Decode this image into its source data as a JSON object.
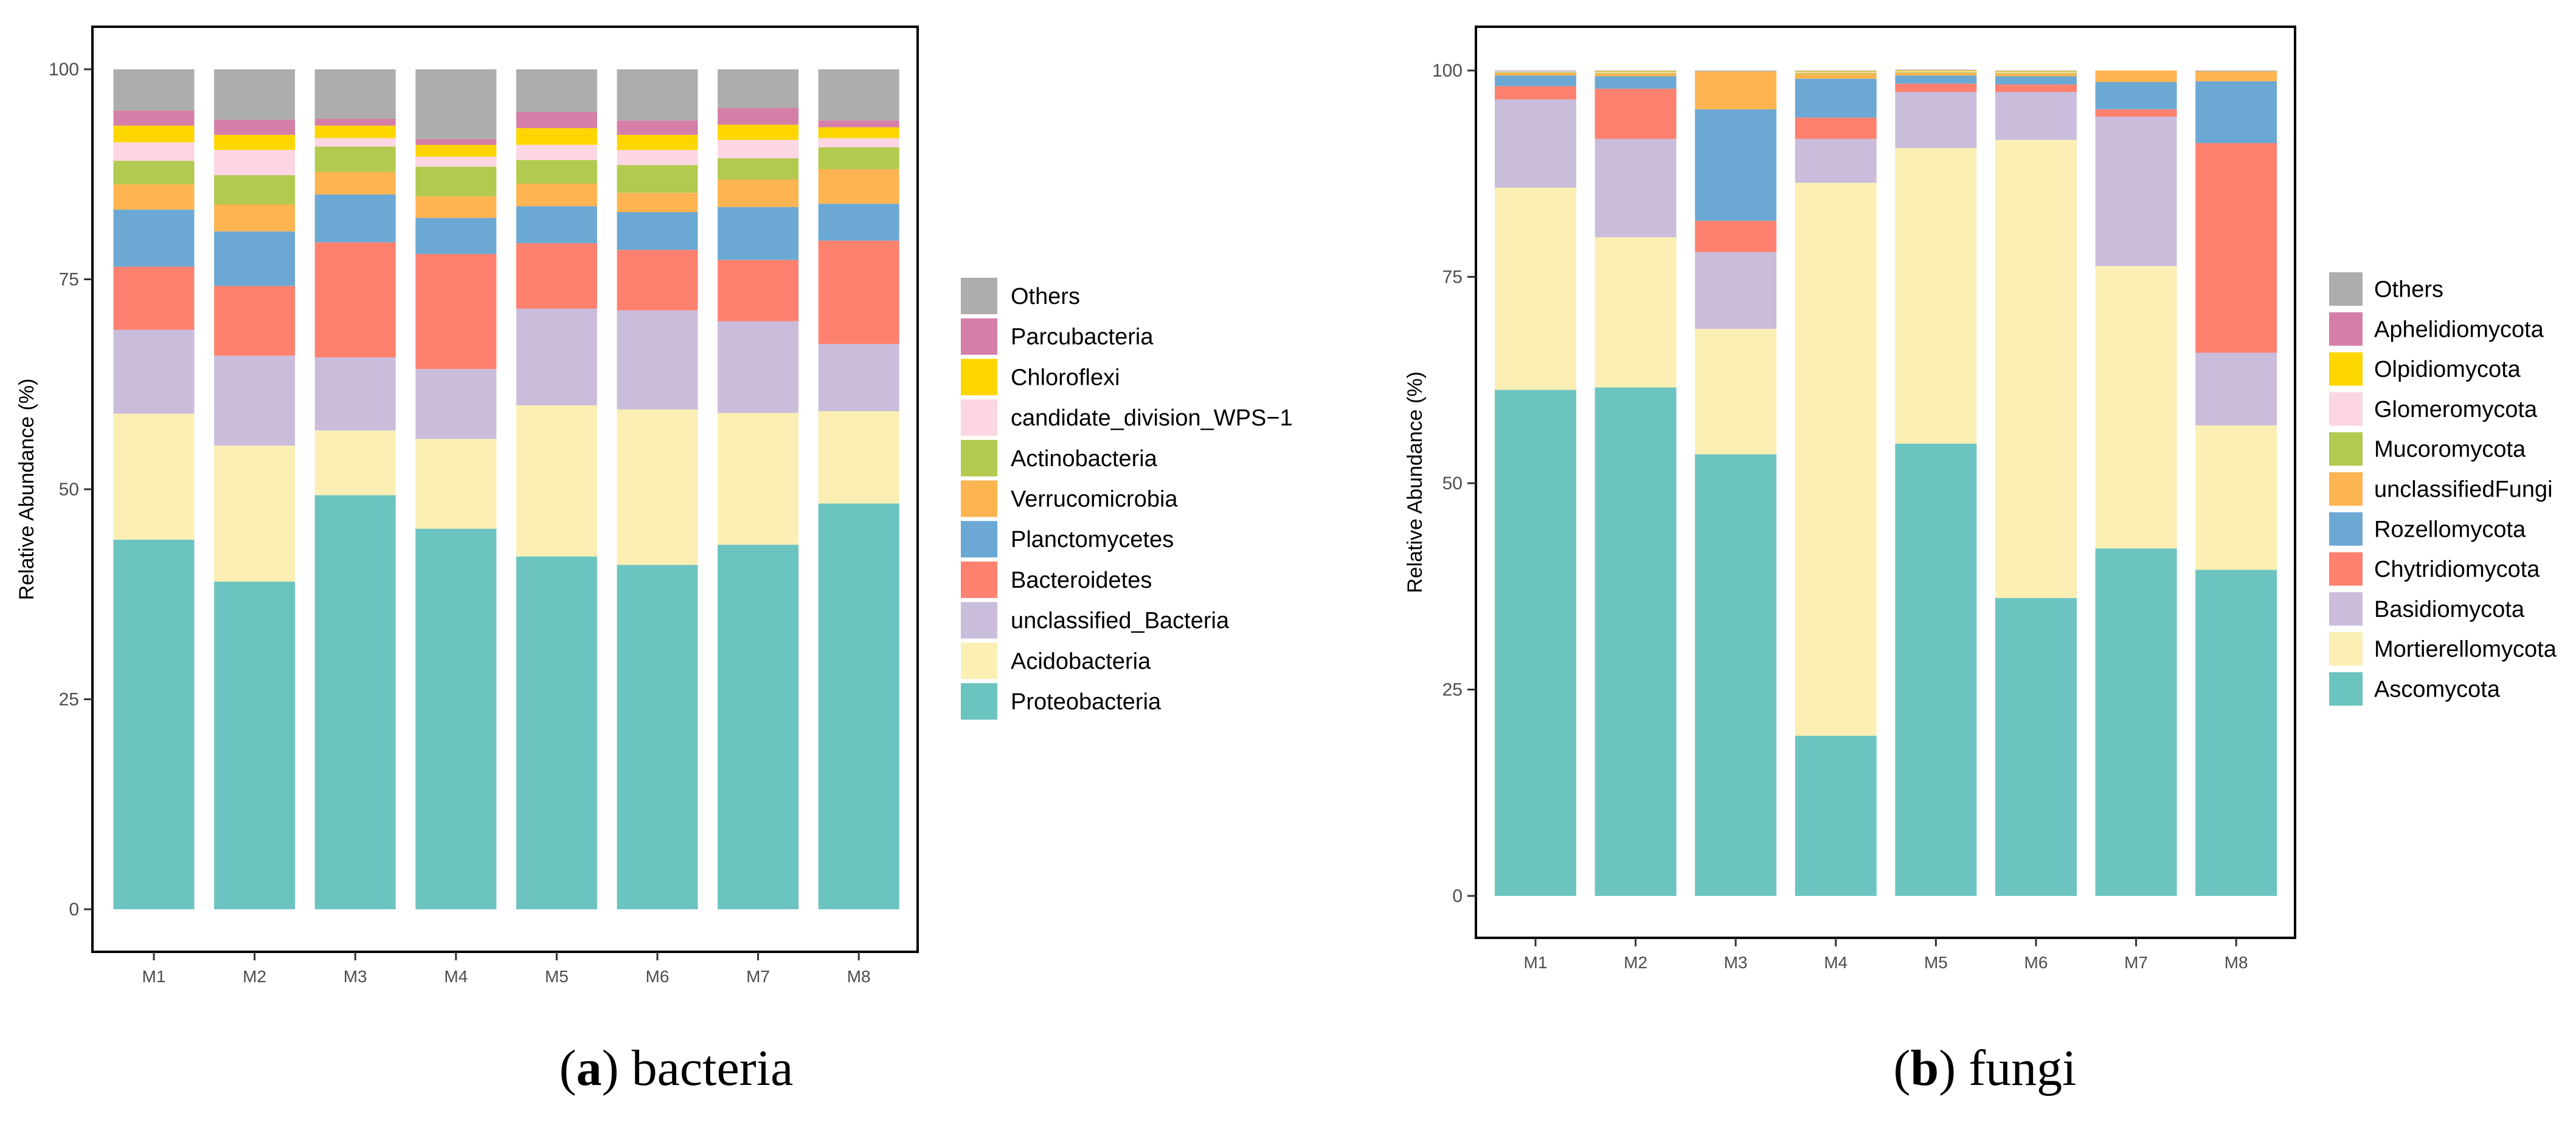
{
  "figure": {
    "panels": [
      "a",
      "b"
    ]
  },
  "chart_data": [
    {
      "type": "bar",
      "stacked": true,
      "panel": "a",
      "caption_letter": "a",
      "caption_text": "bacteria",
      "xlabel": "",
      "ylabel": "Relative Abundance (%)",
      "ylim": [
        0,
        100
      ],
      "yticks": [
        0,
        25,
        50,
        75,
        100
      ],
      "grid": false,
      "legend_position": "right",
      "categories": [
        "M1",
        "M2",
        "M3",
        "M4",
        "M5",
        "M6",
        "M7",
        "M8"
      ],
      "series": [
        {
          "name": "Proteobacteria",
          "color": "#6CC4C0",
          "values": [
            44.0,
            39.0,
            49.3,
            45.3,
            42.0,
            41.0,
            43.4,
            48.3
          ]
        },
        {
          "name": "Acidobacteria",
          "color": "#FBEFB4",
          "values": [
            15.0,
            16.2,
            7.7,
            10.7,
            18.0,
            18.5,
            15.7,
            11.0
          ]
        },
        {
          "name": "unclassified_Bacteria",
          "color": "#CABDDC",
          "values": [
            10.0,
            10.7,
            8.7,
            8.3,
            11.5,
            11.8,
            10.9,
            8.0
          ]
        },
        {
          "name": "Bacteroidetes",
          "color": "#FE816F",
          "values": [
            7.5,
            8.3,
            13.7,
            13.7,
            7.8,
            7.2,
            7.3,
            12.3
          ]
        },
        {
          "name": "Planctomycetes",
          "color": "#6CA8D4",
          "values": [
            6.8,
            6.5,
            5.7,
            4.3,
            4.4,
            4.5,
            6.3,
            4.4
          ]
        },
        {
          "name": "Verrucomicrobia",
          "color": "#FDB451",
          "values": [
            3.0,
            3.2,
            2.7,
            2.6,
            2.7,
            2.3,
            3.3,
            4.1
          ]
        },
        {
          "name": "Actinobacteria",
          "color": "#B1CA4F",
          "values": [
            2.8,
            3.5,
            3.0,
            3.5,
            2.8,
            3.3,
            2.5,
            2.6
          ]
        },
        {
          "name": "candidate_division_WPS−1",
          "color": "#FCD6E2",
          "values": [
            2.2,
            3.0,
            1.0,
            1.2,
            1.8,
            1.8,
            2.2,
            1.1
          ]
        },
        {
          "name": "Chloroflexi",
          "color": "#FDD600",
          "values": [
            2.0,
            1.8,
            1.5,
            1.4,
            2.0,
            1.8,
            1.8,
            1.3
          ]
        },
        {
          "name": "Parcubacteria",
          "color": "#D57EA7",
          "values": [
            1.8,
            1.8,
            0.8,
            0.7,
            1.9,
            1.7,
            2.0,
            0.8
          ]
        },
        {
          "name": "Others",
          "color": "#ADADAD",
          "values": [
            4.9,
            6.0,
            5.9,
            8.3,
            5.1,
            6.1,
            4.6,
            6.1
          ]
        }
      ]
    },
    {
      "type": "bar",
      "stacked": true,
      "panel": "b",
      "caption_letter": "b",
      "caption_text": "fungi",
      "xlabel": "",
      "ylabel": "Relative Abundance (%)",
      "ylim": [
        0,
        100
      ],
      "yticks": [
        0,
        25,
        50,
        75,
        100
      ],
      "grid": false,
      "legend_position": "right",
      "categories": [
        "M1",
        "M2",
        "M3",
        "M4",
        "M5",
        "M6",
        "M7",
        "M8"
      ],
      "series": [
        {
          "name": "Ascomycota",
          "color": "#6CC4C0",
          "values": [
            61.3,
            61.6,
            53.5,
            19.4,
            54.8,
            36.1,
            42.1,
            39.5
          ]
        },
        {
          "name": "Mortierellomycota",
          "color": "#FBEFB4",
          "values": [
            24.5,
            18.2,
            15.2,
            67.0,
            35.8,
            55.5,
            34.2,
            17.5
          ]
        },
        {
          "name": "Basidiomycota",
          "color": "#CABDDC",
          "values": [
            10.7,
            11.9,
            9.3,
            5.3,
            6.8,
            5.8,
            18.1,
            8.8
          ]
        },
        {
          "name": "Chytridiomycota",
          "color": "#FE816F",
          "values": [
            1.6,
            6.1,
            3.8,
            2.6,
            1.0,
            0.9,
            0.9,
            25.4
          ]
        },
        {
          "name": "Rozellomycota",
          "color": "#6CA8D4",
          "values": [
            1.3,
            1.5,
            13.5,
            4.7,
            1.0,
            1.0,
            3.3,
            7.5
          ]
        },
        {
          "name": "unclassifiedFungi",
          "color": "#FDB451",
          "values": [
            0.3,
            0.3,
            4.6,
            0.6,
            0.3,
            0.3,
            1.4,
            1.2
          ]
        },
        {
          "name": "Mucoromycota",
          "color": "#B1CA4F",
          "values": [
            0.1,
            0.1,
            0.0,
            0.1,
            0.1,
            0.1,
            0.0,
            0.0
          ]
        },
        {
          "name": "Glomeromycota",
          "color": "#FCD6E2",
          "values": [
            0.1,
            0.1,
            0.0,
            0.1,
            0.1,
            0.1,
            0.0,
            0.0
          ]
        },
        {
          "name": "Olpidiomycota",
          "color": "#FDD600",
          "values": [
            0.0,
            0.1,
            0.0,
            0.1,
            0.1,
            0.1,
            0.0,
            0.0
          ]
        },
        {
          "name": "Aphelidiomycota",
          "color": "#D57EA7",
          "values": [
            0.0,
            0.0,
            0.0,
            0.0,
            0.0,
            0.0,
            0.0,
            0.0
          ]
        },
        {
          "name": "Others",
          "color": "#ADADAD",
          "values": [
            0.1,
            0.1,
            0.1,
            0.1,
            0.1,
            0.1,
            0.0,
            0.1
          ]
        }
      ]
    }
  ]
}
